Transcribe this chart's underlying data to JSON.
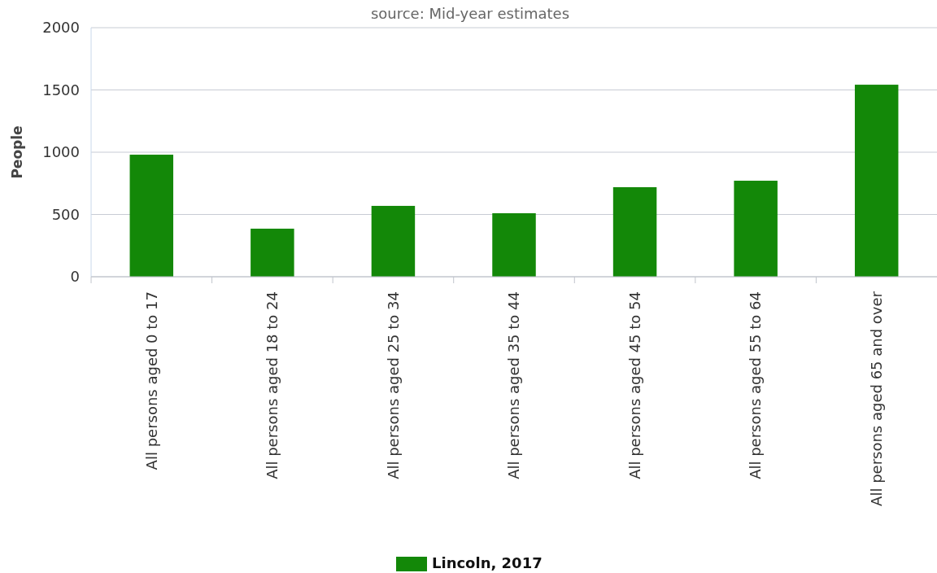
{
  "chart_data": {
    "type": "bar",
    "title": "source: Mid-year estimates",
    "ylabel": "People",
    "categories": [
      "All persons aged 0 to 17",
      "All persons aged 18 to 24",
      "All persons aged 25 to 34",
      "All persons aged 35 to 44",
      "All persons aged 45 to 54",
      "All persons aged 55 to 64",
      "All persons aged 65 and over"
    ],
    "series": [
      {
        "name": "Lincoln, 2017",
        "color": "#138808",
        "values": [
          980,
          386,
          569,
          510,
          719,
          771,
          1542
        ]
      }
    ],
    "ylim": [
      0,
      2000
    ],
    "yticks": [
      0,
      500,
      1000,
      1500,
      2000
    ],
    "grid": "y",
    "legend": "bottom"
  }
}
